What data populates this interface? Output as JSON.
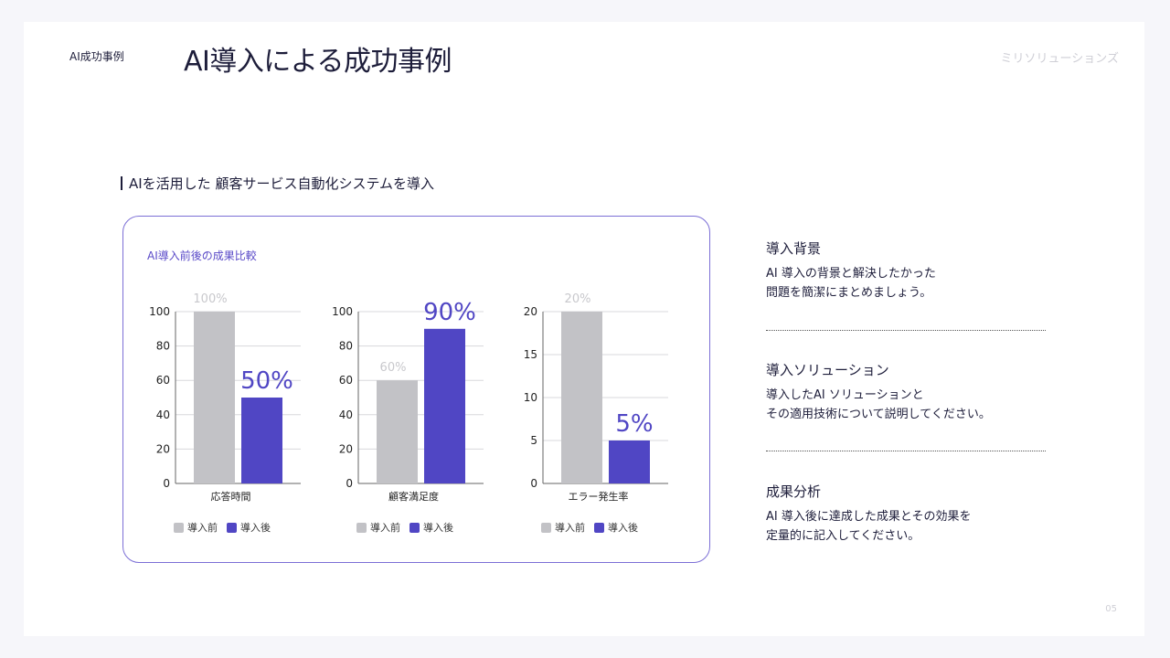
{
  "header": {
    "tag": "AI成功事例",
    "title": "AI導入による成功事例",
    "brand": "ミリソリューションズ"
  },
  "subtitle": "AIを活用した 顧客サービス自動化システムを導入",
  "card_title": "AI導入前後の成果比較",
  "colors": {
    "before": "#c2c2c6",
    "after": "#5046c4",
    "before_label": "#c8c8cc"
  },
  "chart_data": [
    {
      "type": "bar",
      "category": "応答時間",
      "ylim": [
        0,
        100
      ],
      "yticks": [
        0,
        20,
        40,
        60,
        80,
        100
      ],
      "grid": true,
      "legend": "bottom",
      "series": [
        {
          "name": "導入前",
          "value": 100,
          "label": "100%"
        },
        {
          "name": "導入後",
          "value": 50,
          "label": "50%"
        }
      ]
    },
    {
      "type": "bar",
      "category": "顧客満足度",
      "ylim": [
        0,
        100
      ],
      "yticks": [
        0,
        20,
        40,
        60,
        80,
        100
      ],
      "grid": true,
      "legend": "bottom",
      "series": [
        {
          "name": "導入前",
          "value": 60,
          "label": "60%"
        },
        {
          "name": "導入後",
          "value": 90,
          "label": "90%"
        }
      ]
    },
    {
      "type": "bar",
      "category": "エラー発生率",
      "ylim": [
        0,
        20
      ],
      "yticks": [
        0,
        5,
        10,
        15,
        20
      ],
      "grid": true,
      "legend": "bottom",
      "series": [
        {
          "name": "導入前",
          "value": 20,
          "label": "20%"
        },
        {
          "name": "導入後",
          "value": 5,
          "label": "5%"
        }
      ]
    }
  ],
  "sections": [
    {
      "title": "導入背景",
      "body": [
        "AI 導入の背景と解決したかった",
        "問題を簡潔にまとめましょう。"
      ]
    },
    {
      "title": "導入ソリューション",
      "body": [
        "導入したAI ソリューションと",
        "その適用技術について説明してください。"
      ]
    },
    {
      "title": "成果分析",
      "body": [
        "AI 導入後に達成した成果とその効果を",
        "定量的に記入してください。"
      ]
    }
  ],
  "page_number": "05"
}
